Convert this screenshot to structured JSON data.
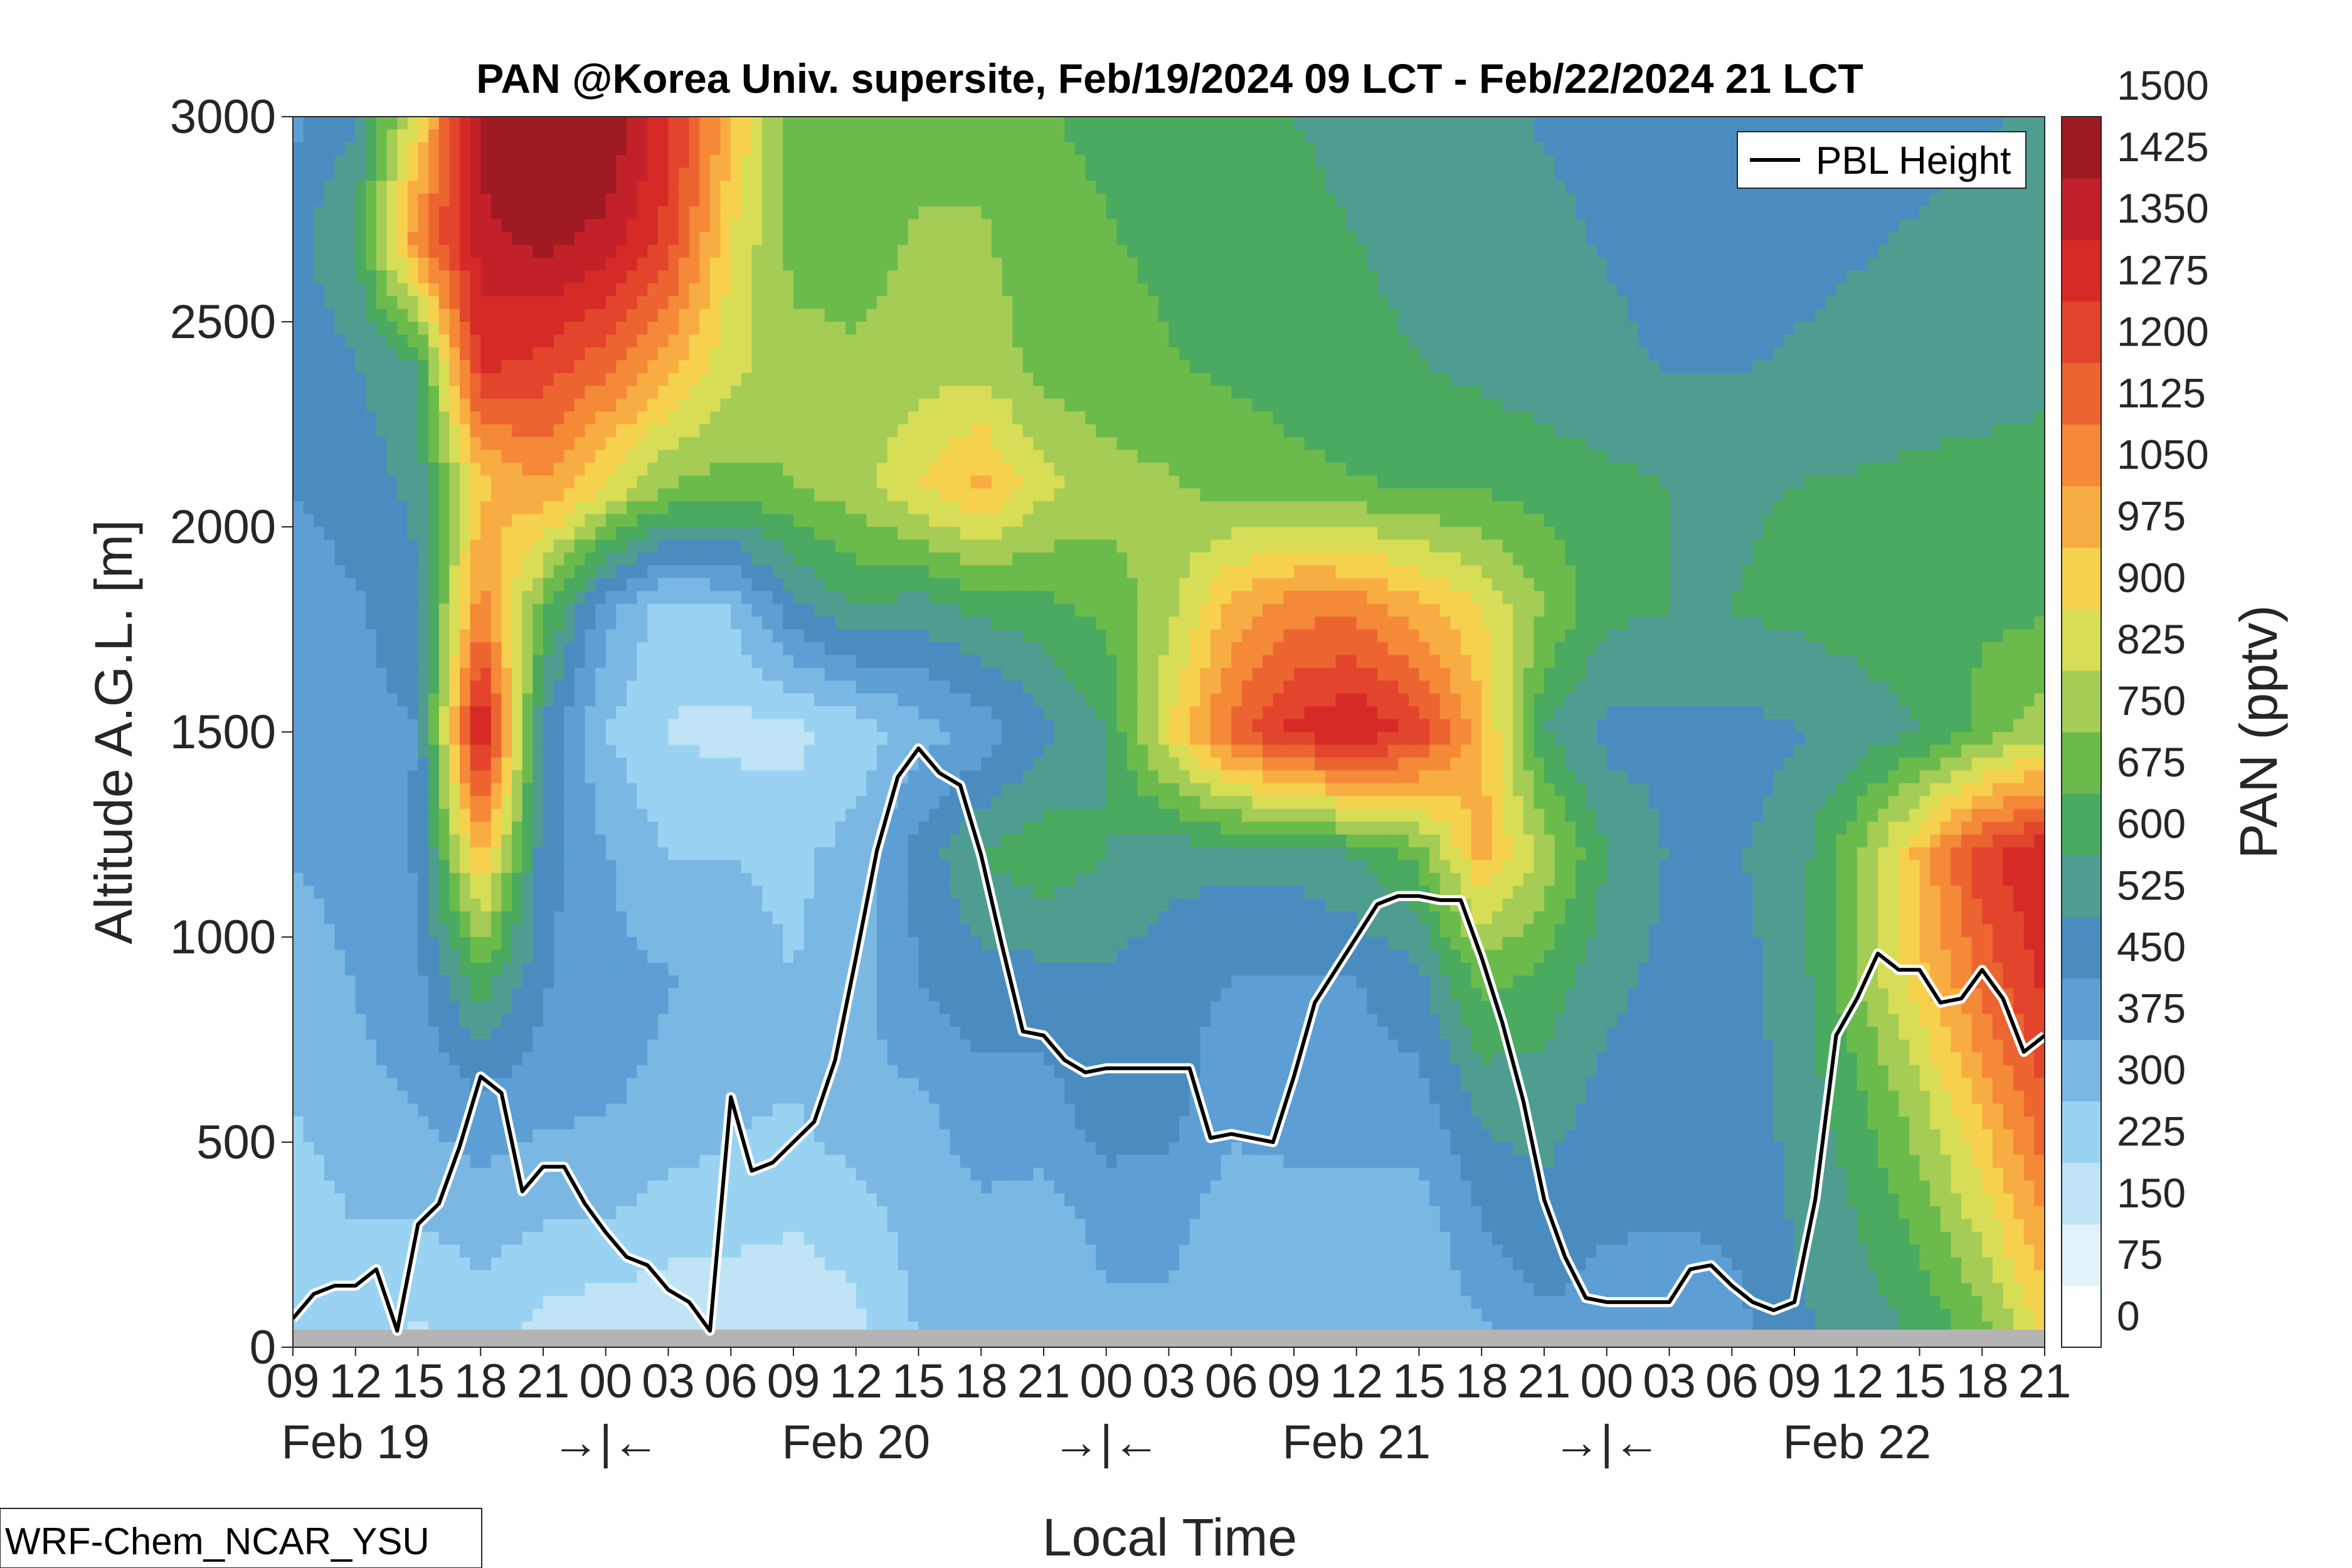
{
  "chart_data": {
    "type": "heatmap",
    "title": "PAN @Korea Univ. supersite, Feb/19/2024 09 LCT - Feb/22/2024 21 LCT",
    "xlabel": "Local Time",
    "ylabel": "Altitude A.G.L. [m]",
    "ylim": [
      0,
      3000
    ],
    "yticks": [
      "0",
      "500",
      "1000",
      "1500",
      "2000",
      "2500",
      "3000"
    ],
    "xrange_hours": [
      0,
      84
    ],
    "hour_ticks": [
      "09",
      "12",
      "15",
      "18",
      "21",
      "00",
      "03",
      "06",
      "09",
      "12",
      "15",
      "18",
      "21",
      "00",
      "03",
      "06",
      "09",
      "12",
      "15",
      "18",
      "21",
      "00",
      "03",
      "06",
      "09",
      "12",
      "15",
      "18",
      "21"
    ],
    "day_labels": [
      {
        "text": "Feb 19",
        "hour": 3
      },
      {
        "text": "Feb 20",
        "hour": 27
      },
      {
        "text": "Feb 21",
        "hour": 51
      },
      {
        "text": "Feb 22",
        "hour": 75
      }
    ],
    "midnight_markers": [
      {
        "text": "→|←",
        "hour": 15
      },
      {
        "text": "→|←",
        "hour": 39
      },
      {
        "text": "→|←",
        "hour": 63
      }
    ],
    "colorbar": {
      "label": "PAN (pptv)",
      "levels": [
        0,
        75,
        150,
        225,
        300,
        375,
        450,
        525,
        600,
        675,
        750,
        825,
        900,
        975,
        1050,
        1125,
        1200,
        1275,
        1350,
        1425,
        1500
      ],
      "labels": [
        "0",
        "75",
        "150",
        "225",
        "300",
        "375",
        "450",
        "525",
        "600",
        "675",
        "750",
        "825",
        "900",
        "975",
        "1050",
        "1125",
        "1200",
        "1275",
        "1350",
        "1425",
        "1500"
      ],
      "colors": [
        "#ffffff",
        "#e2f2fb",
        "#c0e4f6",
        "#9ad3f2",
        "#7ab8e3",
        "#5d9fd5",
        "#4a8cc0",
        "#4f9d90",
        "#4aaa5f",
        "#6bbb4c",
        "#a5cc55",
        "#d7dd55",
        "#f6d14e",
        "#f8ad42",
        "#f48938",
        "#ec6530",
        "#e2452b",
        "#d62a27",
        "#c3212a",
        "#9f1a22"
      ]
    },
    "pan_field": {
      "heights_m": [
        0,
        300,
        600,
        900,
        1200,
        1500,
        1800,
        2100,
        2400,
        2700,
        3000
      ],
      "hours": [
        0,
        3,
        6,
        9,
        12,
        15,
        18,
        21,
        24,
        27,
        30,
        33,
        36,
        39,
        42,
        45,
        48,
        51,
        54,
        57,
        60,
        63,
        66,
        69,
        72,
        75,
        78,
        81,
        84
      ],
      "values_pptv": [
        [
          250,
          250,
          200,
          250,
          180,
          150,
          150,
          150,
          150,
          200,
          300,
          330,
          300,
          350,
          350,
          300,
          300,
          300,
          300,
          350,
          420,
          400,
          400,
          420,
          500,
          550,
          600,
          700,
          900
        ],
        [
          260,
          300,
          300,
          330,
          300,
          300,
          260,
          250,
          230,
          260,
          330,
          360,
          340,
          400,
          400,
          330,
          330,
          330,
          330,
          450,
          500,
          460,
          450,
          460,
          530,
          600,
          700,
          850,
          1050
        ],
        [
          300,
          350,
          380,
          430,
          400,
          380,
          360,
          320,
          300,
          360,
          360,
          420,
          420,
          500,
          480,
          400,
          420,
          420,
          420,
          550,
          560,
          500,
          480,
          480,
          550,
          650,
          800,
          1000,
          1200
        ],
        [
          330,
          380,
          430,
          650,
          460,
          400,
          380,
          340,
          300,
          350,
          450,
          500,
          500,
          520,
          480,
          450,
          450,
          450,
          500,
          700,
          650,
          550,
          500,
          500,
          550,
          750,
          950,
          1150,
          1300
        ],
        [
          380,
          400,
          460,
          1000,
          480,
          380,
          300,
          300,
          280,
          330,
          480,
          600,
          650,
          600,
          550,
          550,
          550,
          600,
          700,
          1000,
          800,
          600,
          520,
          520,
          550,
          750,
          1000,
          1250,
          1350
        ],
        [
          400,
          420,
          450,
          1400,
          500,
          300,
          220,
          200,
          200,
          250,
          340,
          400,
          500,
          600,
          900,
          1150,
          1300,
          1350,
          1250,
          1000,
          600,
          500,
          500,
          500,
          520,
          550,
          600,
          700,
          800
        ],
        [
          420,
          440,
          500,
          1100,
          700,
          400,
          260,
          300,
          500,
          600,
          560,
          620,
          650,
          700,
          800,
          1000,
          1100,
          1100,
          1000,
          900,
          750,
          620,
          600,
          600,
          620,
          640,
          650,
          660,
          660
        ],
        [
          450,
          480,
          550,
          950,
          1050,
          900,
          750,
          720,
          750,
          800,
          900,
          1000,
          850,
          780,
          760,
          720,
          700,
          680,
          670,
          660,
          640,
          620,
          600,
          590,
          600,
          610,
          620,
          630,
          640
        ],
        [
          480,
          520,
          600,
          1300,
          1250,
          1150,
          1000,
          850,
          780,
          760,
          780,
          800,
          720,
          700,
          680,
          660,
          640,
          620,
          600,
          580,
          560,
          540,
          520,
          520,
          530,
          540,
          550,
          560,
          570
        ],
        [
          500,
          600,
          1100,
          1400,
          1450,
          1400,
          1250,
          900,
          720,
          720,
          760,
          760,
          700,
          680,
          660,
          640,
          620,
          600,
          580,
          560,
          540,
          520,
          500,
          500,
          510,
          520,
          530,
          540,
          550
        ],
        [
          430,
          520,
          900,
          1450,
          1550,
          1500,
          1300,
          1000,
          700,
          700,
          720,
          720,
          680,
          660,
          640,
          620,
          600,
          580,
          560,
          540,
          520,
          500,
          480,
          480,
          490,
          500,
          510,
          520,
          530
        ]
      ]
    },
    "series": [
      {
        "name": "PBL Height",
        "x_hours": [
          0,
          1,
          2,
          3,
          4,
          5,
          6,
          7,
          8,
          9,
          10,
          11,
          12,
          13,
          14,
          15,
          16,
          17,
          18,
          19,
          20,
          21,
          22,
          23,
          24,
          25,
          26,
          27,
          28,
          29,
          30,
          31,
          32,
          33,
          34,
          35,
          36,
          37,
          38,
          39,
          40,
          41,
          42,
          43,
          44,
          45,
          46,
          47,
          48,
          49,
          50,
          51,
          52,
          53,
          54,
          55,
          56,
          57,
          58,
          59,
          60,
          61,
          62,
          63,
          64,
          65,
          66,
          67,
          68,
          69,
          70,
          71,
          72,
          73,
          74,
          75,
          76,
          77,
          78,
          79,
          80,
          81,
          82,
          83,
          84
        ],
        "values_m": [
          70,
          130,
          150,
          150,
          190,
          40,
          300,
          350,
          490,
          660,
          620,
          380,
          440,
          440,
          350,
          280,
          220,
          200,
          140,
          110,
          40,
          610,
          430,
          450,
          500,
          550,
          700,
          950,
          1210,
          1390,
          1460,
          1400,
          1370,
          1200,
          980,
          770,
          760,
          700,
          670,
          680,
          680,
          680,
          680,
          680,
          510,
          520,
          510,
          500,
          660,
          840,
          920,
          1000,
          1080,
          1100,
          1100,
          1090,
          1090,
          950,
          790,
          600,
          360,
          220,
          120,
          110,
          110,
          110,
          110,
          190,
          200,
          150,
          110,
          90,
          110,
          360,
          760,
          850,
          960,
          920,
          920,
          840,
          850,
          920,
          850,
          720,
          760
        ]
      }
    ],
    "legend": {
      "position": "top-right",
      "entries": [
        "PBL Height"
      ]
    },
    "ground_band": true
  },
  "annotation": {
    "model": "WRF-Chem_NCAR_YSU"
  }
}
